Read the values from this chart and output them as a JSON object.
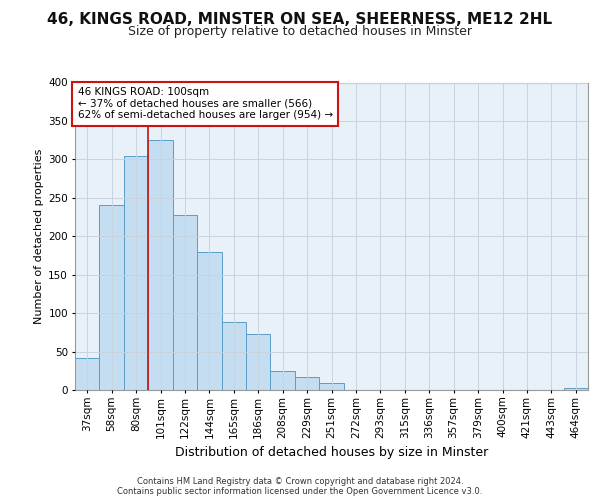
{
  "title1": "46, KINGS ROAD, MINSTER ON SEA, SHEERNESS, ME12 2HL",
  "title2": "Size of property relative to detached houses in Minster",
  "xlabel": "Distribution of detached houses by size in Minster",
  "ylabel": "Number of detached properties",
  "categories": [
    "37sqm",
    "58sqm",
    "80sqm",
    "101sqm",
    "122sqm",
    "144sqm",
    "165sqm",
    "186sqm",
    "208sqm",
    "229sqm",
    "251sqm",
    "272sqm",
    "293sqm",
    "315sqm",
    "336sqm",
    "357sqm",
    "379sqm",
    "400sqm",
    "421sqm",
    "443sqm",
    "464sqm"
  ],
  "values": [
    42,
    241,
    305,
    325,
    228,
    180,
    88,
    73,
    25,
    17,
    9,
    0,
    0,
    0,
    0,
    0,
    0,
    0,
    0,
    0,
    3
  ],
  "bar_color": "#c5ddf0",
  "bar_edge_color": "#5b9dc9",
  "grid_color": "#c8d4e0",
  "bg_color": "#e8f0f8",
  "vline_pos": 2.5,
  "vline_color": "#cc1111",
  "annotation_text": "46 KINGS ROAD: 100sqm\n← 37% of detached houses are smaller (566)\n62% of semi-detached houses are larger (954) →",
  "ann_box_edge": "#cc1111",
  "footer": "Contains HM Land Registry data © Crown copyright and database right 2024.\nContains public sector information licensed under the Open Government Licence v3.0.",
  "ylim": [
    0,
    400
  ],
  "yticks": [
    0,
    50,
    100,
    150,
    200,
    250,
    300,
    350,
    400
  ],
  "title1_fontsize": 11,
  "title2_fontsize": 9,
  "ylabel_fontsize": 8,
  "xlabel_fontsize": 9,
  "tick_fontsize": 7.5,
  "ann_fontsize": 7.5,
  "footer_fontsize": 6
}
